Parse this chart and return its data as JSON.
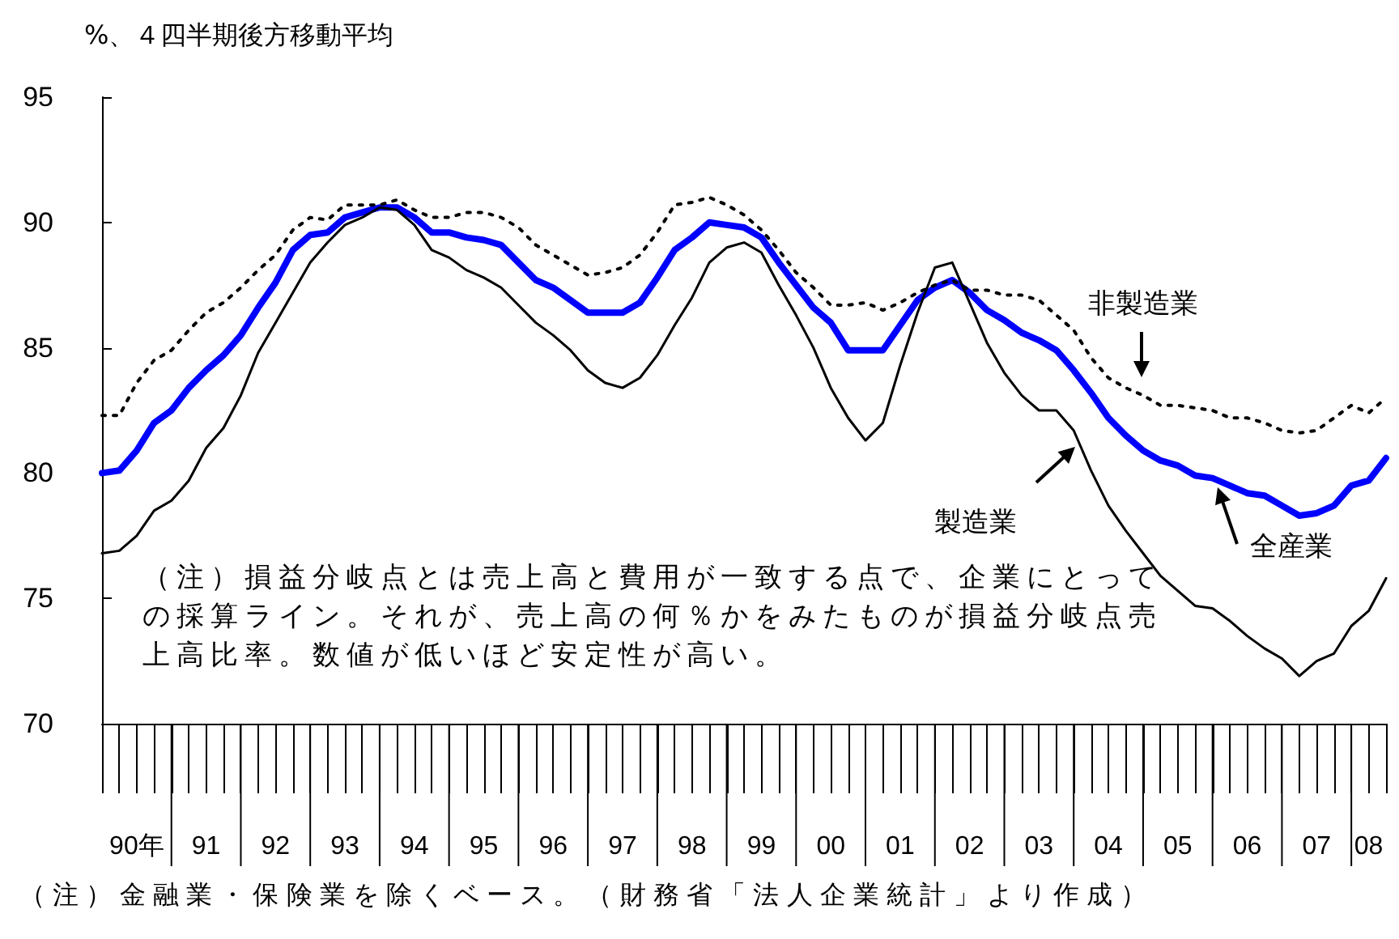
{
  "chart_data": {
    "type": "line",
    "ylabel": "%、４四半期後方移動平均",
    "annotations": [
      "（注）損益分岐点とは売上高と費用が一致する点で、企業にとっての採算ライン。それが、売上高の何％かをみたものが損益分岐点売上高比率。数値が低いほど安定性が高い。",
      "（注）金融業・保険業を除くベース。（財務省「法人企業統計」より作成）"
    ],
    "categories": [
      null,
      null,
      "90年",
      null,
      null,
      null,
      "91",
      null,
      null,
      null,
      "92",
      null,
      null,
      null,
      "93",
      null,
      null,
      null,
      "94",
      null,
      null,
      null,
      "95",
      null,
      null,
      null,
      "96",
      null,
      null,
      null,
      "97",
      null,
      null,
      null,
      "98",
      null,
      null,
      null,
      "99",
      null,
      null,
      null,
      "00",
      null,
      null,
      null,
      "01",
      null,
      null,
      null,
      "02",
      null,
      null,
      null,
      "03",
      null,
      null,
      null,
      "04",
      null,
      null,
      null,
      "05",
      null,
      null,
      null,
      "06",
      null,
      null,
      null,
      "07",
      null,
      null,
      "08",
      null
    ],
    "series": [
      {
        "name": "全産業",
        "color": "#0000ff",
        "line_style": "solid",
        "values": [
          80.0,
          80.1,
          80.9,
          82.0,
          82.5,
          83.4,
          84.1,
          84.7,
          85.5,
          86.6,
          87.6,
          88.9,
          89.5,
          89.6,
          90.2,
          90.4,
          90.6,
          90.6,
          90.2,
          89.6,
          89.6,
          89.4,
          89.3,
          89.1,
          88.4,
          87.7,
          87.4,
          86.9,
          86.4,
          86.4,
          86.4,
          86.8,
          87.8,
          88.9,
          89.4,
          90.0,
          89.9,
          89.8,
          89.4,
          88.4,
          87.5,
          86.6,
          86.0,
          84.9,
          84.9,
          84.9,
          85.9,
          86.9,
          87.4,
          87.7,
          87.2,
          86.5,
          86.1,
          85.6,
          85.3,
          84.9,
          84.1,
          83.2,
          82.2,
          81.5,
          80.9,
          80.5,
          80.3,
          79.9,
          79.8,
          79.5,
          79.2,
          79.1,
          78.7,
          78.3,
          78.4,
          78.7,
          79.5,
          79.7,
          80.6
        ]
      },
      {
        "name": "製造業",
        "color": "#000000",
        "line_style": "solid",
        "values": [
          76.8,
          76.9,
          77.5,
          78.5,
          78.9,
          79.7,
          81.0,
          81.8,
          83.1,
          84.8,
          86.0,
          87.2,
          88.4,
          89.2,
          89.9,
          90.2,
          90.6,
          90.5,
          89.9,
          88.9,
          88.6,
          88.1,
          87.8,
          87.4,
          86.7,
          86.0,
          85.5,
          84.9,
          84.1,
          83.6,
          83.4,
          83.8,
          84.7,
          85.9,
          87.0,
          88.4,
          89.0,
          89.2,
          88.8,
          87.5,
          86.3,
          85.0,
          83.4,
          82.2,
          81.3,
          82.0,
          84.3,
          86.4,
          88.2,
          88.4,
          86.8,
          85.2,
          84.0,
          83.1,
          82.5,
          82.5,
          81.7,
          80.1,
          78.7,
          77.7,
          76.8,
          75.9,
          75.3,
          74.7,
          74.6,
          74.1,
          73.5,
          73.0,
          72.6,
          71.9,
          72.5,
          72.8,
          73.9,
          74.5,
          75.8
        ]
      },
      {
        "name": "非製造業",
        "color": "#000000",
        "line_style": "dotted",
        "values": [
          82.3,
          82.3,
          83.6,
          84.5,
          84.9,
          85.7,
          86.4,
          86.8,
          87.4,
          88.1,
          88.7,
          89.7,
          90.2,
          90.1,
          90.7,
          90.7,
          90.7,
          90.9,
          90.5,
          90.2,
          90.2,
          90.4,
          90.4,
          90.2,
          89.8,
          89.1,
          88.7,
          88.3,
          87.9,
          88.0,
          88.2,
          88.7,
          89.6,
          90.7,
          90.8,
          91.0,
          90.7,
          90.3,
          89.7,
          88.9,
          88.0,
          87.4,
          86.7,
          86.7,
          86.8,
          86.5,
          86.8,
          87.2,
          87.5,
          87.7,
          87.3,
          87.3,
          87.1,
          87.1,
          86.9,
          86.3,
          85.7,
          84.6,
          83.8,
          83.4,
          83.1,
          82.7,
          82.7,
          82.6,
          82.5,
          82.2,
          82.2,
          82.0,
          81.7,
          81.6,
          81.7,
          82.2,
          82.7,
          82.4,
          83.0
        ]
      }
    ],
    "ylim": [
      70,
      95
    ],
    "yticks": [
      70,
      75,
      80,
      85,
      90,
      95
    ],
    "grid": false,
    "legend": false,
    "marker": "none"
  }
}
